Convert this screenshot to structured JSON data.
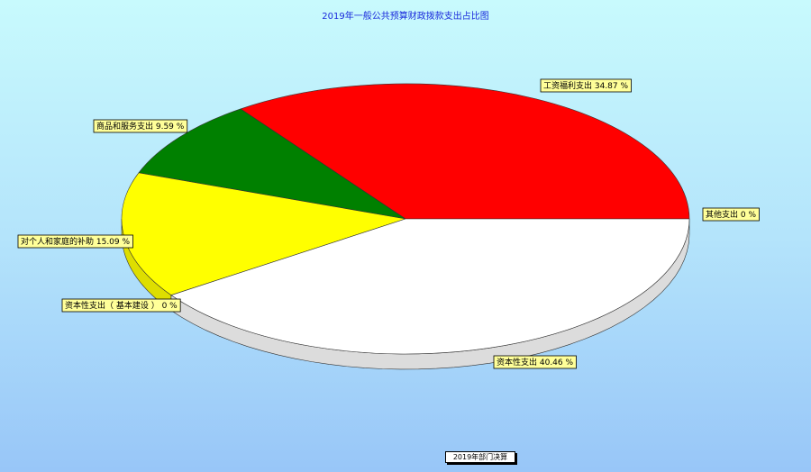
{
  "chart_data": {
    "type": "pie",
    "title": "2019年一般公共预算财政拨款支出占比图",
    "slices": [
      {
        "label": "工资福利支出",
        "value": 34.87,
        "display": "工资福利支出 34.87 %",
        "color": "#ff0000",
        "side": "#cc0000"
      },
      {
        "label": "商品和服务支出",
        "value": 9.59,
        "display": "商品和服务支出 9.59 %",
        "color": "#008000",
        "side": "#006000"
      },
      {
        "label": "对个人和家庭的补助",
        "value": 15.09,
        "display": "对个人和家庭的补助 15.09 %",
        "color": "#ffff00",
        "side": "#dede00"
      },
      {
        "label": "资本性支出（基本建设）",
        "value": 0,
        "display": "资本性支出（ 基本建设 ） 0 %",
        "color": "#c0c0c0",
        "side": "#a0a0a0"
      },
      {
        "label": "资本性支出",
        "value": 40.46,
        "display": "资本性支出 40.46 %",
        "color": "#ffffff",
        "side": "#dcdcdc"
      },
      {
        "label": "其他支出",
        "value": 0,
        "display": "其他支出 0 %",
        "color": "#0000ff",
        "side": "#0000c0"
      }
    ],
    "style": "3d",
    "label_box_color": "#ffff99"
  },
  "footer": {
    "label": "2019年部门决算"
  }
}
